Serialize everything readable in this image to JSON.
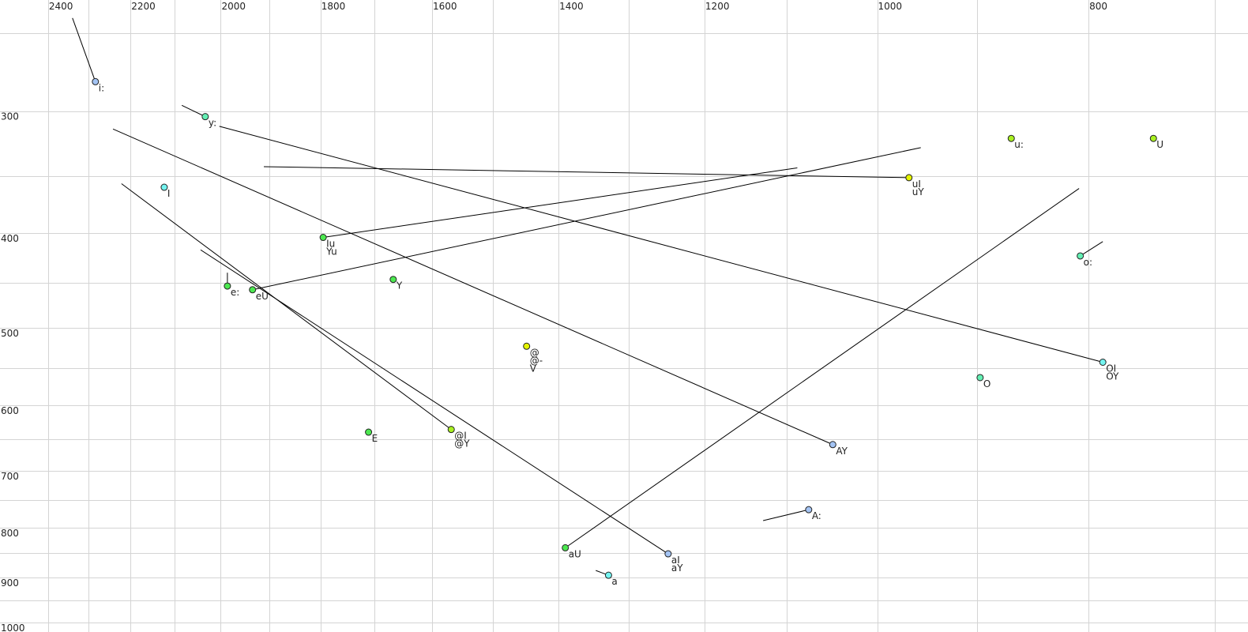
{
  "chart_data": {
    "type": "scatter",
    "title": "",
    "xlabel": "",
    "ylabel": "",
    "x_scale": "log",
    "y_scale": "log",
    "x_reversed": true,
    "xlim": [
      2525,
      676
    ],
    "ylim": [
      231,
      1023
    ],
    "grid": true,
    "x_grid_step": 100,
    "y_grid_step": 50,
    "x_ticks": [
      2400,
      2200,
      2000,
      1800,
      1600,
      1400,
      1200,
      1000,
      800
    ],
    "y_ticks": [
      300,
      400,
      500,
      600,
      700,
      800,
      900,
      1000
    ],
    "colors": {
      "blue": "#a4c4f4",
      "cyan": "#74f4f0",
      "mint": "#64f0b4",
      "green": "#4ce850",
      "lime": "#a8f020",
      "yellow": "#e4f400"
    },
    "points": [
      {
        "labels": [
          "i:"
        ],
        "f2": 2283,
        "f1": 280,
        "color": "blue",
        "line_to": [
          2339,
          241
        ]
      },
      {
        "labels": [
          "y:"
        ],
        "f2": 2033,
        "f1": 304,
        "color": "mint",
        "line_to": [
          2084,
          296
        ]
      },
      {
        "labels": [
          "I"
        ],
        "f2": 2123,
        "f1": 359,
        "color": "cyan"
      },
      {
        "labels": [
          "e:"
        ],
        "f2": 1986,
        "f1": 453,
        "color": "green",
        "line_to": [
          1986,
          439
        ]
      },
      {
        "labels": [
          "eU"
        ],
        "f2": 1934,
        "f1": 457,
        "color": "green",
        "line_to": [
          955,
          327
        ]
      },
      {
        "labels": [
          "Iu",
          "Yu"
        ],
        "f2": 1795,
        "f1": 404,
        "color": "green",
        "line_to": [
          1088,
          343
        ]
      },
      {
        "labels": [
          "Y"
        ],
        "f2": 1667,
        "f1": 446,
        "color": "green"
      },
      {
        "labels": [
          "@",
          "@-",
          "V"
        ],
        "f2": 1448,
        "f1": 522,
        "color": "yellow"
      },
      {
        "labels": [
          "@I",
          "@Y"
        ],
        "f2": 1568,
        "f1": 635,
        "color": "lime",
        "line_to": [
          2221,
          356
        ]
      },
      {
        "labels": [
          "E"
        ],
        "f2": 1711,
        "f1": 639,
        "color": "green"
      },
      {
        "labels": [
          "aU"
        ],
        "f2": 1390,
        "f1": 839,
        "color": "green",
        "line_to": [
          808,
          360
        ]
      },
      {
        "labels": [
          "a"
        ],
        "f2": 1328,
        "f1": 895,
        "color": "cyan",
        "line_to": [
          1346,
          885
        ]
      },
      {
        "labels": [
          "aI",
          "aY"
        ],
        "f2": 1247,
        "f1": 851,
        "color": "blue",
        "line_to": [
          2043,
          416
        ]
      },
      {
        "labels": [
          "AY"
        ],
        "f2": 1048,
        "f1": 658,
        "color": "blue",
        "line_to": [
          2241,
          313
        ]
      },
      {
        "labels": [
          "A:"
        ],
        "f2": 1075,
        "f1": 767,
        "color": "blue",
        "line_to": [
          1128,
          787
        ]
      },
      {
        "labels": [
          "uI",
          "uY"
        ],
        "f2": 967,
        "f1": 351,
        "color": "yellow",
        "line_to": [
          1911,
          342
        ]
      },
      {
        "labels": [
          "u:"
        ],
        "f2": 868,
        "f1": 320,
        "color": "lime"
      },
      {
        "labels": [
          "U"
        ],
        "f2": 747,
        "f1": 320,
        "color": "lime"
      },
      {
        "labels": [
          "o:"
        ],
        "f2": 807,
        "f1": 422,
        "color": "mint",
        "line_to": [
          788,
          408
        ]
      },
      {
        "labels": [
          "OI",
          "OY"
        ],
        "f2": 788,
        "f1": 542,
        "color": "cyan",
        "line_to": [
          2003,
          311
        ]
      },
      {
        "labels": [
          "O"
        ],
        "f2": 897,
        "f1": 562,
        "color": "mint"
      }
    ]
  }
}
